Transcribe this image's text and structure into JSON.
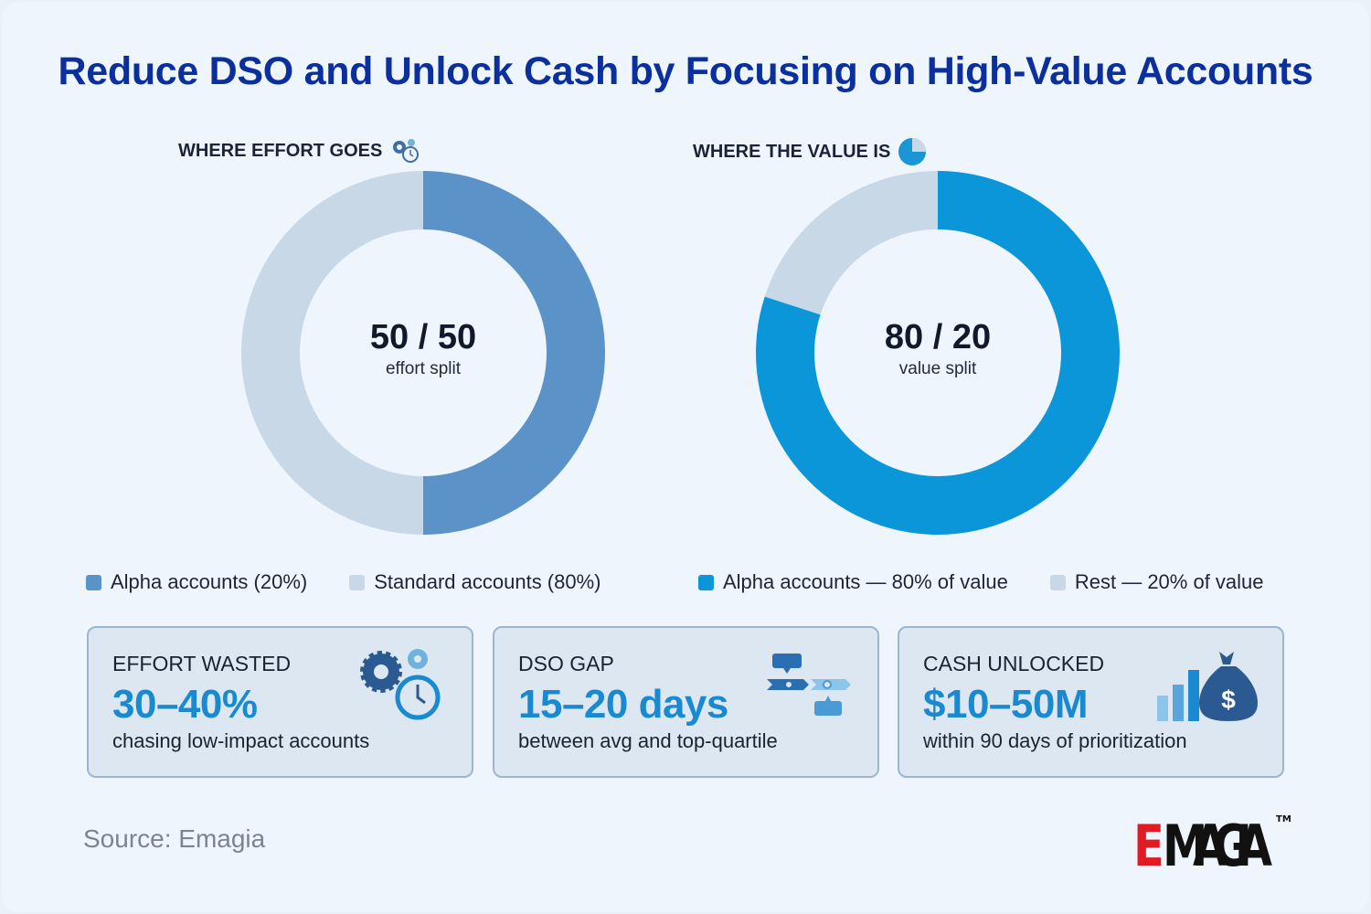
{
  "title": "Reduce DSO and Unlock Cash by Focusing on High-Value Accounts",
  "chart_data": [
    {
      "type": "pie",
      "subtype": "donut",
      "title": "WHERE EFFORT GOES",
      "center_value": "50 / 50",
      "center_label": "effort split",
      "slices": [
        {
          "name": "Alpha accounts (20%)",
          "value": 50,
          "color": "#5b93c9"
        },
        {
          "name": "Standard accounts (80%)",
          "value": 50,
          "color": "#c9d8e7"
        }
      ]
    },
    {
      "type": "pie",
      "subtype": "donut",
      "title": "WHERE THE VALUE IS",
      "center_value": "80 / 20",
      "center_label": "value split",
      "slices": [
        {
          "name": "Alpha accounts — 80% of value",
          "value": 80,
          "color": "#0a96d8"
        },
        {
          "name": "Rest — 20% of value",
          "value": 20,
          "color": "#c9d8e7"
        }
      ]
    }
  ],
  "cards": [
    {
      "label": "EFFORT WASTED",
      "value": "30–40%",
      "desc": "chasing low-impact accounts",
      "icon": "gears-clock-icon"
    },
    {
      "label": "DSO GAP",
      "value": "15–20 days",
      "desc": "between avg and top-quartile",
      "icon": "timeline-icon"
    },
    {
      "label": "CASH UNLOCKED",
      "value": "$10–50M",
      "desc": "within 90 days of prioritization",
      "icon": "money-bag-chart-icon"
    }
  ],
  "source": "Source: Emagia",
  "logo": "EMAGIA™"
}
